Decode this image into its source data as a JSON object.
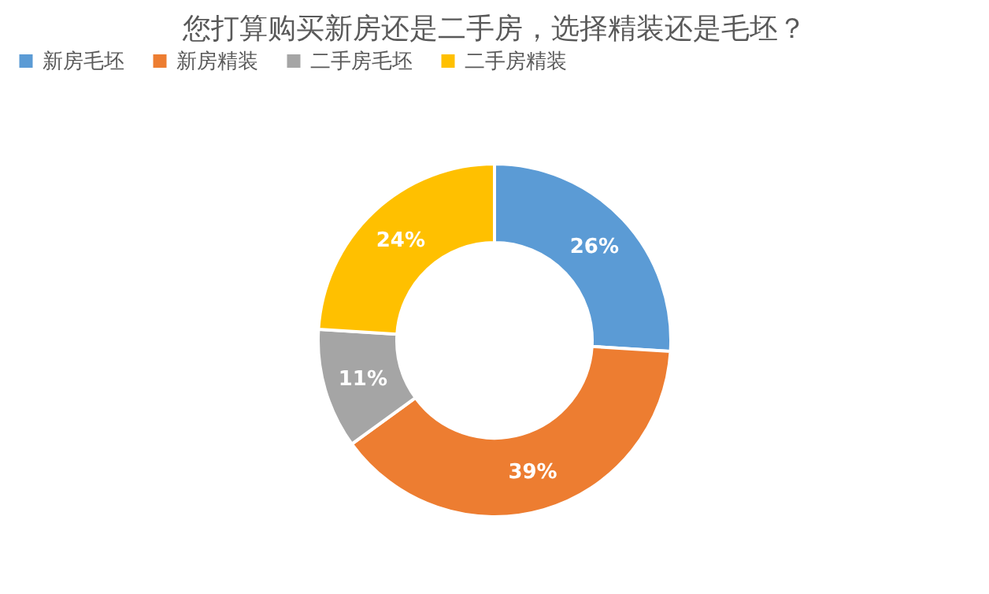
{
  "chart_data": {
    "type": "donut",
    "title": "您打算购买新房还是二手房，选择精装还是毛坯？",
    "categories": [
      "新房毛坯",
      "新房精装",
      "二手房毛坯",
      "二手房精装"
    ],
    "values": [
      26,
      39,
      11,
      24
    ],
    "colors": [
      "#5b9bd5",
      "#ed7d31",
      "#a5a5a5",
      "#ffc000"
    ],
    "value_labels": [
      "26%",
      "39%",
      "11%",
      "24%"
    ],
    "legend": "top"
  }
}
